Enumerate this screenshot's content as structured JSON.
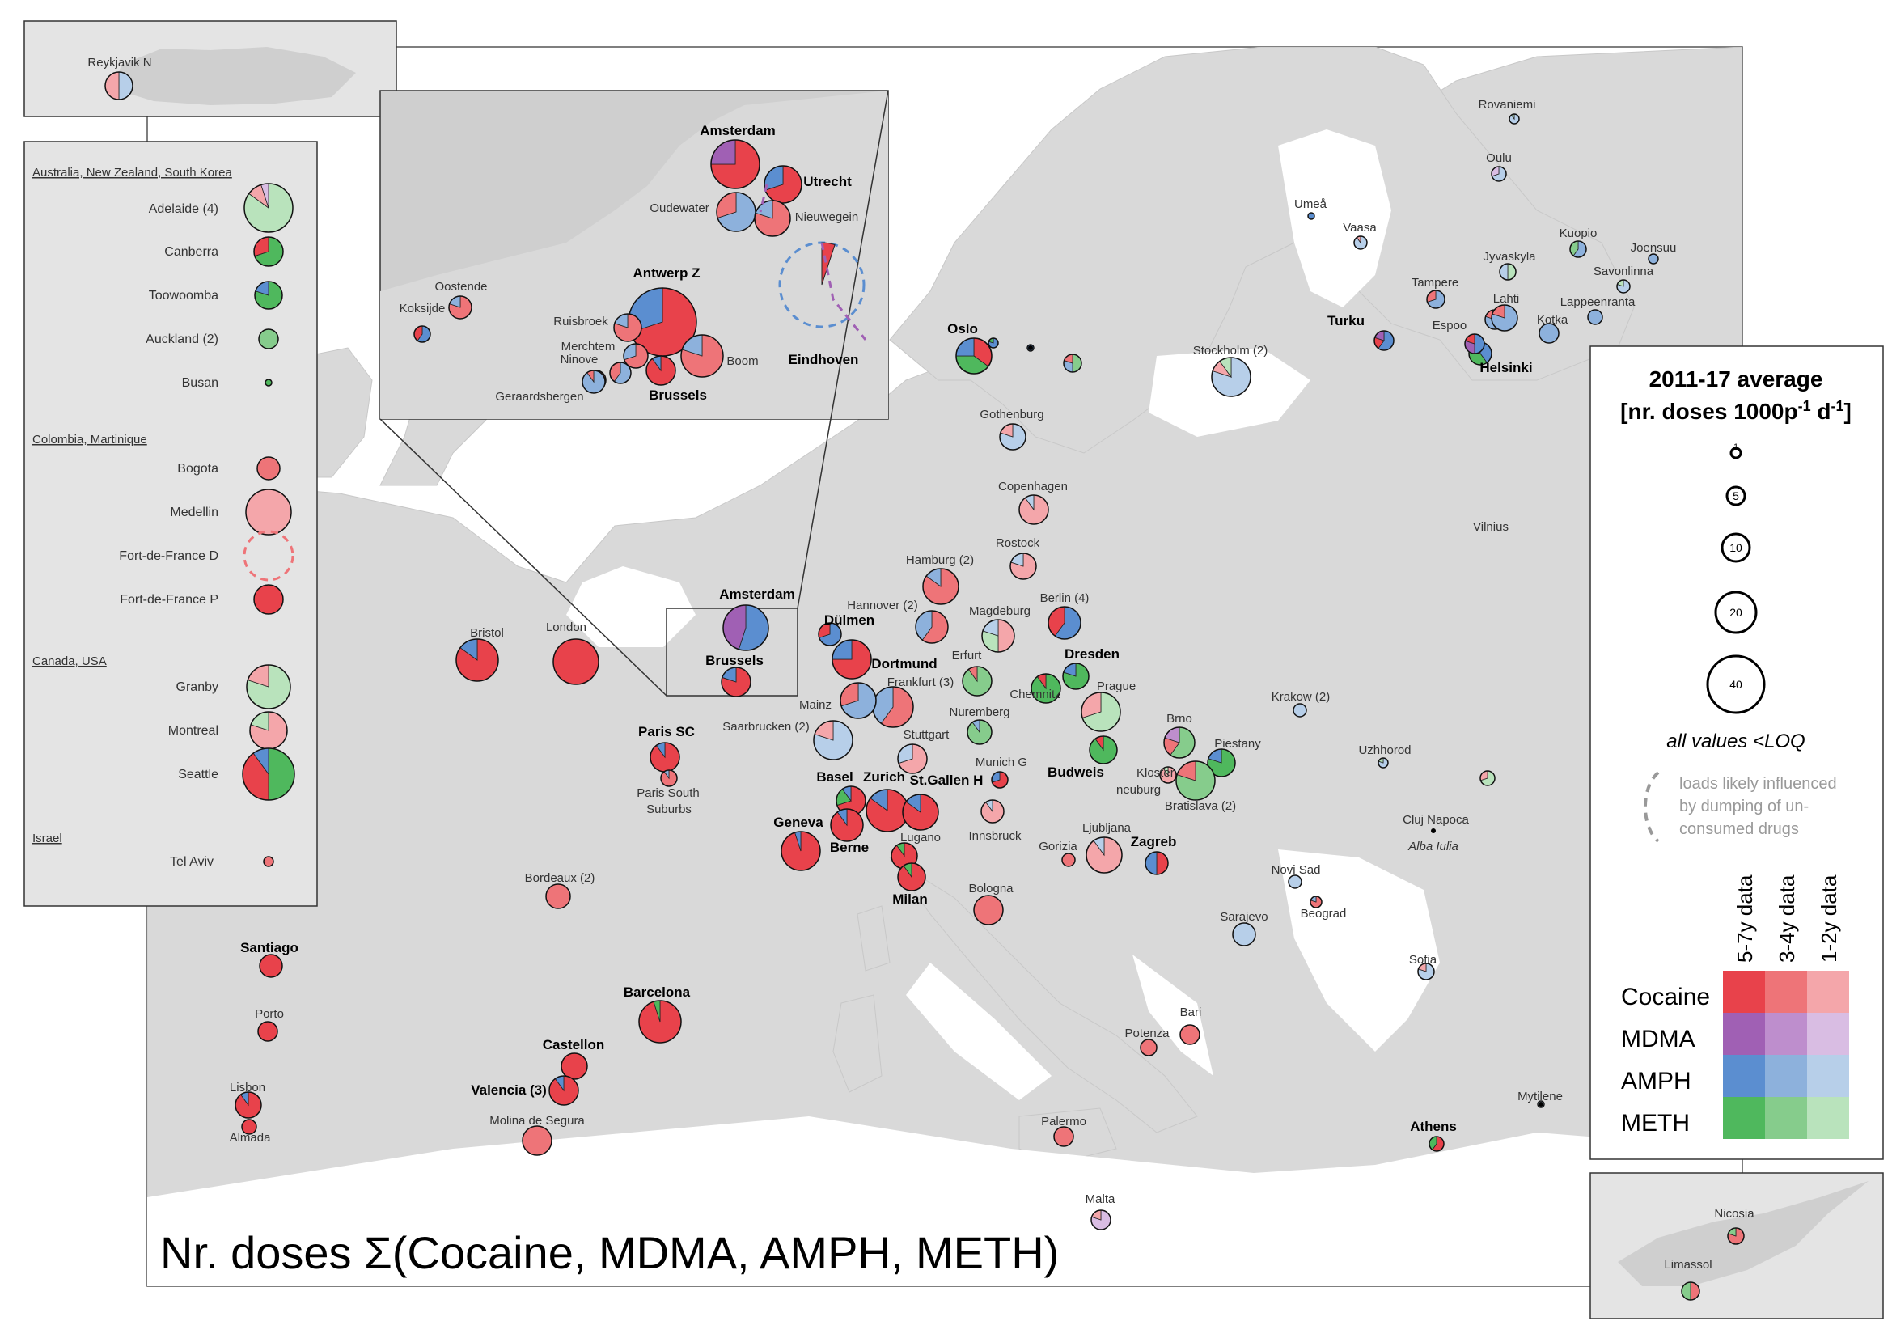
{
  "title": "Nr. doses Σ(Cocaine, MDMA, AMPH, METH)",
  "colors": {
    "cocaine": [
      "#e8424b",
      "#ee7478",
      "#f4a6aa"
    ],
    "mdma": [
      "#a060b4",
      "#be8ecd",
      "#d9bde3"
    ],
    "amph": [
      "#5b8ed0",
      "#8db1dc",
      "#b7cfe9"
    ],
    "meth": [
      "#4fb85d",
      "#86cc8c",
      "#b9e3bc"
    ],
    "land": "#d9d9d9",
    "inset_bg": "#e4e4e4"
  },
  "legend": {
    "title_line1": "2011-17 average",
    "title_line2": "[nr. doses 1000p",
    "title_sup1": "-1",
    "title_mid": " d",
    "title_sup2": "-1",
    "title_end": "]",
    "sizes": [
      "1",
      "5",
      "10",
      "20",
      "40"
    ],
    "loq": "all values <LOQ",
    "dumping_note": [
      "loads likely influenced",
      "by dumping of un-",
      "consumed drugs"
    ],
    "columns": [
      "5-7y data",
      "3-4y data",
      "1-2y data"
    ],
    "rows": [
      "Cocaine",
      "MDMA",
      "AMPH",
      "METH"
    ]
  },
  "side_panel": {
    "groups": [
      {
        "heading": "Australia, New Zealand, South Korea",
        "cities": [
          "Adelaide (4)",
          "Canberra",
          "Toowoomba",
          "Auckland (2)",
          "Busan"
        ]
      },
      {
        "heading": "Colombia, Martinique",
        "cities": [
          "Bogota",
          "Medellin",
          "Fort-de-France D",
          "Fort-de-France P"
        ]
      },
      {
        "heading": "Canada, USA",
        "cities": [
          "Granby",
          "Montreal",
          "Seattle"
        ]
      },
      {
        "heading": "Israel",
        "cities": [
          "Tel Aviv"
        ]
      }
    ]
  },
  "iceland": {
    "city": "Reykjavik N"
  },
  "cyprus": {
    "cities": [
      "Nicosia",
      "Limassol"
    ]
  },
  "zoom_inset": {
    "cities_bold": [
      "Amsterdam",
      "Utrecht",
      "Antwerp Z",
      "Brussels",
      "Eindhoven"
    ],
    "cities": [
      "Oudewater",
      "Nieuwegein",
      "Oostende",
      "Koksijde",
      "Ruisbroek",
      "Merchtem",
      "Ninove",
      "Boom",
      "Geraardsbergen"
    ]
  },
  "cities_bold": [
    "Amsterdam",
    "Brussels",
    "Dülmen",
    "Dortmund",
    "Oslo",
    "Turku",
    "Helsinki",
    "Dresden",
    "Budweis",
    "Paris SC",
    "Basel",
    "Zurich",
    "St.Gallen H",
    "Geneva",
    "Berne",
    "Milan",
    "Zagreb",
    "Santiago",
    "Barcelona",
    "Castellon",
    "Valencia (3)",
    "Athens"
  ],
  "cities": [
    "Reykjavik N",
    "Rovaniemi",
    "Oulu",
    "Umeå",
    "Vaasa",
    "Kuopio",
    "Joensuu",
    "Jyvaskyla",
    "Savonlinna",
    "Tampere",
    "Lappeenranta",
    "Lahti",
    "Espoo",
    "Kotka",
    "Stockholm (2)",
    "Gothenburg",
    "Copenhagen",
    "Rostock",
    "Hamburg (2)",
    "Hannover (2)",
    "Berlin (4)",
    "Magdeburg",
    "Erfurt",
    "Chemnitz",
    "Frankfurt (3)",
    "Mainz",
    "Saarbrucken (2)",
    "Stuttgart",
    "Nuremberg",
    "Prague",
    "Brno",
    "Piestany",
    "Bratislava (2)",
    "Kloster-",
    "neuburg",
    "Munich G",
    "Innsbruck",
    "Lugano",
    "Gorizia",
    "Ljubljana",
    "Bologna",
    "Krakow (2)",
    "Uzhhorod",
    "Cluj Napoca",
    "Alba Iulia",
    "Novi Sad",
    "Beograd",
    "Sarajevo",
    "Sofia",
    "Bari",
    "Potenza",
    "Palermo",
    "Malta",
    "Mytilene",
    "Vilnius",
    "Bristol",
    "London",
    "Paris South",
    "Suburbs",
    "Bordeaux (2)",
    "Porto",
    "Lisbon",
    "Almada",
    "Molina de Segura"
  ]
}
